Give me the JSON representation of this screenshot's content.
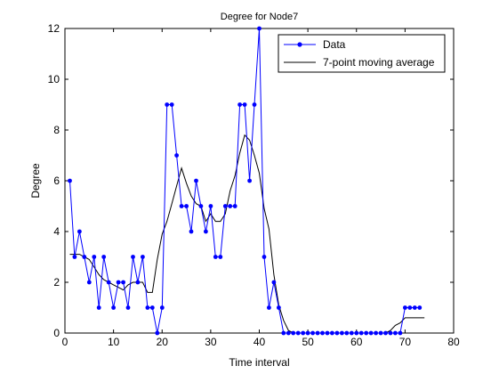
{
  "chart_data": {
    "type": "line",
    "title": "Degree for Node7",
    "xlabel": "Time interval",
    "ylabel": "Degree",
    "xlim": [
      0,
      80
    ],
    "ylim": [
      0,
      12
    ],
    "xticks": [
      0,
      10,
      20,
      30,
      40,
      50,
      60,
      70,
      80
    ],
    "yticks": [
      0,
      2,
      4,
      6,
      8,
      10,
      12
    ],
    "grid": false,
    "legend_position": "top-right",
    "series": [
      {
        "name": "Data",
        "style": "line-with-dot-markers",
        "color": "#0000ff",
        "x": [
          1,
          2,
          3,
          4,
          5,
          6,
          7,
          8,
          9,
          10,
          11,
          12,
          13,
          14,
          15,
          16,
          17,
          18,
          19,
          20,
          21,
          22,
          23,
          24,
          25,
          26,
          27,
          28,
          29,
          30,
          31,
          32,
          33,
          34,
          35,
          36,
          37,
          38,
          39,
          40,
          41,
          42,
          43,
          44,
          45,
          46,
          47,
          48,
          49,
          50,
          51,
          52,
          53,
          54,
          55,
          56,
          57,
          58,
          59,
          60,
          61,
          62,
          63,
          64,
          65,
          66,
          67,
          68,
          69,
          70,
          71,
          72,
          73
        ],
        "y": [
          6,
          3,
          4,
          3,
          2,
          3,
          1,
          3,
          2,
          1,
          2,
          2,
          1,
          3,
          2,
          3,
          1,
          1,
          0,
          1,
          9,
          9,
          7,
          5,
          5,
          4,
          6,
          5,
          4,
          5,
          3,
          3,
          5,
          5,
          5,
          9,
          9,
          6,
          9,
          12,
          3,
          1,
          2,
          1,
          0,
          0,
          0,
          0,
          0,
          0,
          0,
          0,
          0,
          0,
          0,
          0,
          0,
          0,
          0,
          0,
          0,
          0,
          0,
          0,
          0,
          0,
          0,
          0,
          0,
          1,
          1,
          1,
          1
        ]
      },
      {
        "name": "7-point moving average",
        "style": "line",
        "color": "#000000",
        "x": [
          1,
          2,
          3,
          4,
          5,
          6,
          7,
          8,
          9,
          10,
          11,
          12,
          13,
          14,
          15,
          16,
          17,
          18,
          19,
          20,
          21,
          22,
          23,
          24,
          25,
          26,
          27,
          28,
          29,
          30,
          31,
          32,
          33,
          34,
          35,
          36,
          37,
          38,
          39,
          40,
          41,
          42,
          43,
          44,
          45,
          46,
          47,
          48,
          49,
          50,
          51,
          52,
          53,
          54,
          55,
          56,
          57,
          58,
          59,
          60,
          61,
          62,
          63,
          64,
          65,
          66,
          67,
          68,
          69,
          70,
          71,
          72,
          73,
          74
        ],
        "y": [
          3.1,
          3.1,
          3.1,
          3.0,
          2.9,
          2.6,
          2.3,
          2.1,
          2.0,
          1.9,
          1.8,
          1.7,
          1.9,
          2.0,
          2.0,
          2.0,
          1.6,
          1.6,
          2.9,
          3.9,
          4.4,
          5.1,
          5.8,
          6.5,
          5.9,
          5.4,
          5.1,
          5.0,
          4.4,
          4.7,
          4.4,
          4.4,
          4.7,
          5.6,
          6.2,
          7.1,
          7.8,
          7.6,
          7.0,
          6.3,
          4.9,
          4.1,
          2.3,
          1.1,
          0.5,
          0.1,
          0,
          0,
          0,
          0,
          0,
          0,
          0,
          0,
          0,
          0,
          0,
          0,
          0,
          0,
          0,
          0,
          0,
          0,
          0,
          0,
          0.1,
          0.3,
          0.4,
          0.6,
          0.6,
          0.6,
          0.6,
          0.6
        ]
      }
    ]
  }
}
